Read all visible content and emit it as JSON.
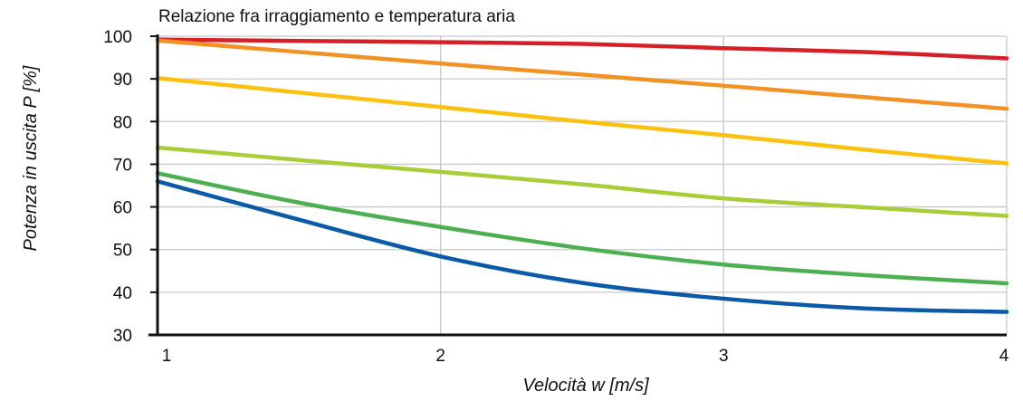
{
  "chart_data": {
    "type": "line",
    "title": "Relazione fra irraggiamento e temperatura aria",
    "xlabel": "Velocità w [m/s]",
    "ylabel": "Potenza in uscita P [%]",
    "xlim": [
      1,
      4
    ],
    "ylim": [
      30,
      100
    ],
    "x_ticks": [
      "1",
      "2",
      "3",
      "4"
    ],
    "y_ticks": [
      "30",
      "40",
      "50",
      "60",
      "70",
      "80",
      "90",
      "100"
    ],
    "grid": true,
    "series": [
      {
        "color": "#d62027",
        "x": [
          1,
          1.5,
          2,
          2.5,
          3,
          3.5,
          4
        ],
        "values": [
          99.2,
          98.9,
          98.6,
          98.2,
          97.2,
          96.3,
          94.8
        ]
      },
      {
        "color": "#f39224",
        "x": [
          1,
          1.5,
          2,
          2.5,
          3,
          3.5,
          4
        ],
        "values": [
          99.0,
          96.3,
          93.6,
          91.0,
          88.4,
          85.7,
          83.0
        ]
      },
      {
        "color": "#fbc10f",
        "x": [
          1,
          1.5,
          2,
          2.5,
          3,
          3.5,
          4
        ],
        "values": [
          90.2,
          86.8,
          83.4,
          80.0,
          76.8,
          73.4,
          70.2
        ]
      },
      {
        "color": "#a9cd37",
        "x": [
          1,
          1.5,
          2,
          2.5,
          3,
          3.5,
          4
        ],
        "values": [
          73.9,
          71.0,
          68.2,
          65.3,
          62.0,
          59.9,
          57.9
        ]
      },
      {
        "color": "#4caf50",
        "x": [
          1,
          1.5,
          2,
          2.5,
          3,
          3.5,
          4
        ],
        "values": [
          67.9,
          61.0,
          55.3,
          50.3,
          46.5,
          44.0,
          42.1
        ]
      },
      {
        "color": "#0a5aa7",
        "x": [
          1,
          1.5,
          2,
          2.5,
          3,
          3.5,
          4
        ],
        "values": [
          66.0,
          57.0,
          48.4,
          42.2,
          38.5,
          36.2,
          35.4
        ]
      }
    ]
  }
}
